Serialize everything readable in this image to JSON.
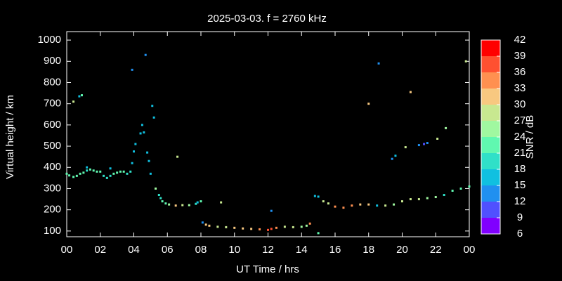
{
  "chart_data": {
    "type": "scatter",
    "title": "2025-03-03. f = 2760 kHz",
    "xlabel": "UT Time / hrs",
    "ylabel": "Virtual height / km",
    "xlim": [
      0,
      24
    ],
    "xticks": [
      {
        "value": 0,
        "label": "00"
      },
      {
        "value": 2,
        "label": "02"
      },
      {
        "value": 4,
        "label": "04"
      },
      {
        "value": 6,
        "label": "06"
      },
      {
        "value": 8,
        "label": "08"
      },
      10,
      12,
      14,
      16,
      18,
      20,
      22,
      {
        "value": 24,
        "label": "00"
      }
    ],
    "ylim": [
      73,
      1040
    ],
    "yticks": [
      100,
      200,
      300,
      400,
      500,
      600,
      700,
      800,
      900,
      1000
    ],
    "colorbar": {
      "label": "SNR / dB",
      "lim": [
        6,
        42
      ],
      "ticks": [
        6,
        9,
        12,
        15,
        18,
        21,
        24,
        27,
        30,
        33,
        36,
        39,
        42
      ],
      "colors": [
        "#8000ff",
        "#5050ff",
        "#2090f0",
        "#10c0e0",
        "#30e0c8",
        "#60f8b0",
        "#a0f8a0",
        "#c8e890",
        "#f8c880",
        "#ff9050",
        "#ff5030",
        "#ff0000"
      ]
    },
    "points": {
      "x": [
        0.0,
        0.15,
        0.4,
        0.6,
        0.8,
        1.0,
        1.2,
        1.4,
        1.6,
        1.8,
        2.0,
        2.2,
        2.4,
        2.6,
        2.8,
        3.0,
        3.2,
        3.4,
        3.6,
        3.8,
        3.9,
        0.4,
        0.75,
        0.9,
        1.2,
        2.6,
        3.9,
        4.0,
        4.1,
        4.4,
        4.5,
        4.6,
        4.7,
        4.8,
        4.9,
        5.0,
        5.1,
        5.2,
        5.3,
        5.5,
        5.6,
        5.7,
        5.9,
        6.1,
        6.5,
        6.9,
        7.3,
        7.7,
        8.0,
        6.6,
        7.8,
        8.1,
        8.3,
        8.5,
        9.0,
        9.5,
        10.0,
        10.5,
        11.0,
        11.5,
        12.0,
        12.2,
        12.5,
        13.0,
        13.5,
        14.0,
        14.3,
        14.5,
        9.2,
        12.2,
        15.0,
        14.8,
        15.0,
        15.3,
        15.6,
        16.0,
        16.5,
        17.0,
        17.5,
        18.0,
        18.5,
        19.0,
        19.5,
        20.0,
        20.5,
        21.0,
        21.5,
        22.0,
        22.5,
        23.0,
        23.5,
        24.0,
        18.0,
        18.6,
        19.4,
        19.6,
        20.2,
        20.5,
        21.0,
        21.3,
        21.5,
        22.1,
        22.6,
        23.8
      ],
      "y": [
        370,
        362,
        355,
        360,
        370,
        375,
        385,
        390,
        385,
        380,
        380,
        360,
        350,
        360,
        370,
        375,
        380,
        380,
        370,
        380,
        420,
        710,
        735,
        740,
        400,
        395,
        860,
        475,
        510,
        560,
        600,
        565,
        930,
        470,
        430,
        370,
        690,
        635,
        300,
        270,
        255,
        240,
        230,
        225,
        220,
        222,
        222,
        228,
        240,
        450,
        235,
        140,
        130,
        125,
        120,
        118,
        115,
        112,
        110,
        108,
        105,
        110,
        115,
        120,
        118,
        120,
        125,
        135,
        235,
        195,
        90,
        265,
        262,
        240,
        230,
        215,
        210,
        220,
        225,
        225,
        220,
        220,
        225,
        240,
        250,
        250,
        255,
        260,
        270,
        290,
        300,
        310,
        700,
        890,
        440,
        455,
        495,
        755,
        505,
        510,
        515,
        535,
        585,
        900
      ],
      "snr": [
        21,
        21,
        21,
        22,
        21,
        21,
        20,
        22,
        23,
        22,
        21,
        20,
        19,
        20,
        21,
        21,
        22,
        21,
        20,
        19,
        15,
        28,
        15,
        22,
        15,
        15,
        14,
        15,
        15,
        15,
        16,
        15,
        14,
        15,
        15,
        15,
        15,
        15,
        24,
        19,
        20,
        21,
        22,
        25,
        31,
        27,
        26,
        20,
        21,
        28,
        15,
        12,
        30,
        31,
        29,
        28,
        31,
        32,
        31,
        34,
        36,
        38,
        33,
        29,
        27,
        26,
        24,
        34,
        27,
        14,
        21,
        15,
        15,
        27,
        29,
        33,
        34,
        33,
        32,
        30,
        15,
        27,
        26,
        27,
        28,
        27,
        25,
        24,
        20,
        21,
        22,
        21,
        30,
        12,
        12,
        16,
        27,
        30,
        12,
        10,
        13,
        27,
        25,
        27
      ]
    }
  }
}
